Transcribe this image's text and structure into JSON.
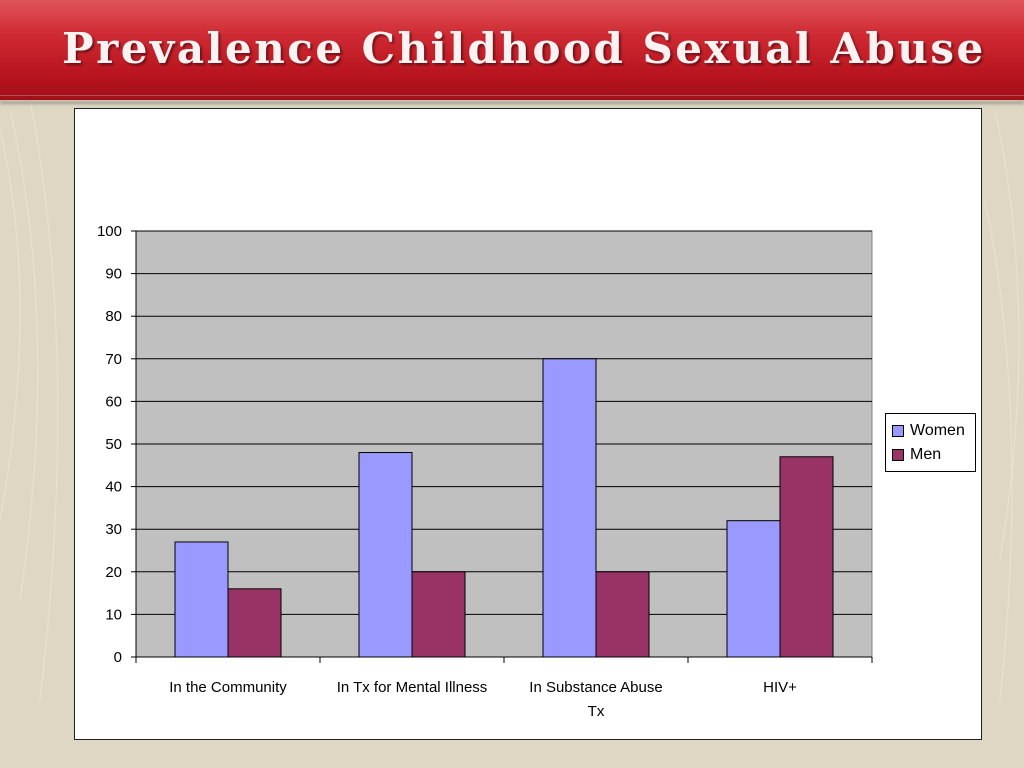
{
  "slide": {
    "title": "Prevalence Childhood Sexual Abuse"
  },
  "colors": {
    "title_band": "#c41e28",
    "background": "#ddd7c4",
    "plot_area": "#c0c0c0",
    "women": "#9999ff",
    "men": "#993366"
  },
  "chart_data": {
    "type": "bar",
    "title": "",
    "xlabel": "",
    "ylabel": "",
    "categories": [
      "In the Community",
      "In Tx for Mental Illness",
      "In Substance Abuse Tx",
      "HIV+"
    ],
    "category_lines": [
      [
        "In the Community"
      ],
      [
        "In Tx for Mental Illness"
      ],
      [
        "In Substance Abuse",
        "Tx"
      ],
      [
        "HIV+"
      ]
    ],
    "series": [
      {
        "name": "Women",
        "values": [
          27,
          48,
          70,
          32
        ]
      },
      {
        "name": "Men",
        "values": [
          16,
          20,
          20,
          47
        ]
      }
    ],
    "ylim": [
      0,
      100
    ],
    "yticks": [
      0,
      10,
      20,
      30,
      40,
      50,
      60,
      70,
      80,
      90,
      100
    ],
    "grid": true,
    "legend": "right"
  }
}
